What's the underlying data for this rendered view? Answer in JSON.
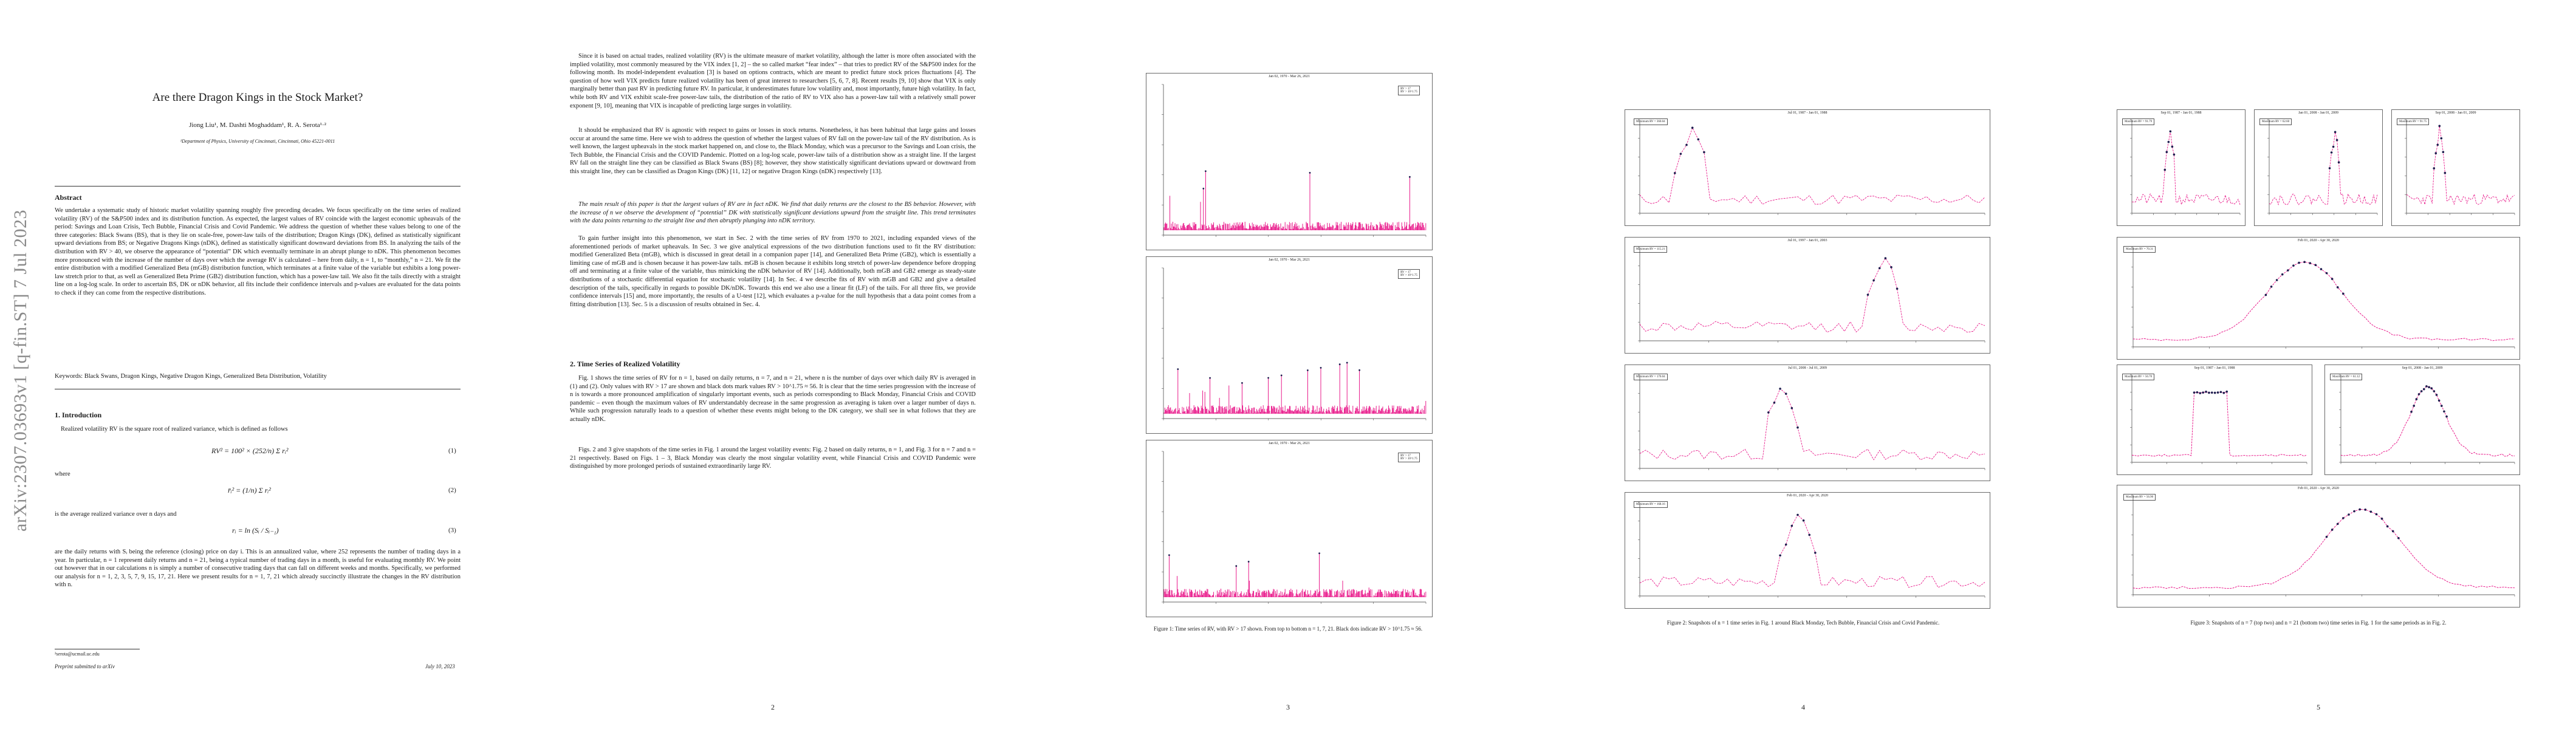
{
  "page1": {
    "arxiv_id": "arXiv:2307.03693v1  [q-fin.ST]  7 Jul 2023",
    "title": "Are there Dragon Kings in the Stock Market?",
    "authors": "Jiong Liu¹, M. Dashti Moghaddam¹, R. A. Serota¹·²",
    "affiliation": "¹Department of Physics, University of Cincinnati, Cincinnati, Ohio 45221-0011",
    "abstract_heading": "Abstract",
    "abstract": "We undertake a systematic study of historic market volatility spanning roughly five preceding decades. We focus specifically on the time series of realized volatility (RV) of the S&P500 index and its distribution function. As expected, the largest values of RV coincide with the largest economic upheavals of the period: Savings and Loan Crisis, Tech Bubble, Financial Crisis and Covid Pandemic. We address the question of whether these values belong to one of the three categories: Black Swans (BS), that is they lie on scale-free, power-law tails of the distribution; Dragon Kings (DK), defined as statistically significant upward deviations from BS; or Negative Dragons Kings (nDK), defined as statistically significant downward deviations from BS. In analyzing the tails of the distribution with RV > 40, we observe the appearance of “potential” DK which eventually terminate in an abrupt plunge to nDK. This phenomenon becomes more pronounced with the increase of the number of days over which the average RV is calculated – here from daily, n = 1, to “monthly,” n = 21. We fit the entire distribution with a modified Generalized Beta (mGB) distribution function, which terminates at a finite value of the variable but exhibits a long power-law stretch prior to that, as well as Generalized Beta Prime (GB2) distribution function, which has a power-law tail. We also fit the tails directly with a straight line on a log-log scale. In order to ascertain BS, DK or nDK behavior, all fits include their confidence intervals and p-values are evaluated for the data points to check if they can come from the respective distributions.",
    "keywords": "Keywords:  Black Swans, Dragon Kings, Negative Dragon Kings, Generalized Beta Distribution, Volatility",
    "intro_heading": "1.  Introduction",
    "intro_p1": "Realized volatility RV is the square root of realized variance, which is defined as follows",
    "eq1": "RV² = 100² × (252/n) Σ rᵢ²",
    "eq1_num": "(1)",
    "where1": "where",
    "eq2": "r̄ᵢ² = (1/n) Σ rᵢ²",
    "eq2_num": "(2)",
    "intro_p2": "is the average realized variance over n days and",
    "eq3": "rᵢ = ln (Sᵢ / Sᵢ₋₁)",
    "eq3_num": "(3)",
    "intro_p3": "are the daily returns with Sᵢ being the reference (closing) price on day i. This is an annualized value, where 252 represents the number of trading days in a year. In particular, n = 1 represent daily returns and n = 21, being a typical number of trading days in a month, is useful for evaluating monthly RV. We point out however that in our calculations n is simply a number of consecutive trading days that can fall on different weeks and months. Specifically, we performed our analysis for n = 1, 2, 3, 5, 7, 9, 15, 17, 21. Here we present results for n = 1, 7, 21 which already succinctly illustrate the changes in the RV distribution with n.",
    "footnote": "²serota@ucmail.uc.edu",
    "preprint": "Preprint submitted to arXiv",
    "date": "July 10, 2023"
  },
  "page2": {
    "p1": "Since it is based on actual trades, realized volatility (RV) is the ultimate measure of market volatility, although the latter is more often associated with the implied volatility, most commonly measured by the VIX index [1, 2] – the so called market “fear index” – that tries to predict RV of the S&P500 index for the following month. Its model-independent evaluation [3] is based on options contracts, which are meant to predict future stock prices fluctuations [4]. The question of how well VIX predicts future realized volatility has been of great interest to researchers [5, 6, 7, 8]. Recent results [9, 10] show that VIX is only marginally better than past RV in predicting future RV. In particular, it underestimates future low volatility and, most importantly, future high volatility. In fact, while both RV and VIX exhibit scale-free power-law tails, the distribution of the ratio of RV to VIX also has a power-law tail with a relatively small power exponent [9, 10], meaning that VIX is incapable of predicting large surges in volatility.",
    "p2": "It should be emphasized that RV is agnostic with respect to gains or losses in stock returns. Nonetheless, it has been habitual that large gains and losses occur at around the same time. Here we wish to address the question of whether the largest values of RV fall on the power-law tail of the RV distribution. As is well known, the largest upheavals in the stock market happened on, and close to, the Black Monday, which was a precursor to the Savings and Loan crisis, the Tech Bubble, the Financial Crisis and the COVID Pandemic. Plotted on a log-log scale, power-law tails of a distribution show as a straight line. If the largest RV fall on the straight line they can be classified as Black Swans (BS) [8]; however, they show statistically significant deviations upward or downward from this straight line, they can be classified as Dragon Kings (DK) [11, 12] or negative Dragon Kings (nDK) respectively [13].",
    "p3": "The main result of this paper is that the largest values of RV are in fact nDK. We find that daily returns are the closest to the BS behavior. However, with the increase of n we observe the development of “potential” DK with statistically significant deviations upward from the straight line. This trend terminates with the data points returning to the straight line and then abruptly plunging into nDK territory.",
    "p4": "To gain further insight into this phenomenon, we start in Sec. 2 with the time series of RV from 1970 to 2021, including expanded views of the aforementioned periods of market upheavals. In Sec. 3 we give analytical expressions of the two distribution functions used to fit the RV distribution: modified Generalized Beta (mGB), which is discussed in great detail in a companion paper [14], and Generalized Beta Prime (GB2), which is essentially a limiting case of mGB and is chosen because it has power-law tails. mGB is chosen because it exhibits long stretch of power-law dependence before dropping off and terminating at a finite value of the variable, thus mimicking the nDK behavior of RV [14]. Additionally, both mGB and GB2 emerge as steady-state distributions of a stochastic differential equation for stochastic volatility [14]. In Sec. 4 we describe fits of RV with mGB and GB2 and give a detailed description of the tails, specifically in regards to possible DK/nDK. Towards this end we also use a linear fit (LF) of the tails. For all three fits, we provide confidence intervals [15] and, more importantly, the results of a U-test [12], which evaluates a p-value for the null hypothesis that a data point comes from a fitting distribution [13]. Sec. 5 is a discussion of results obtained in Sec. 4.",
    "sec2_heading": "2.  Time Series of Realized Volatility",
    "p5": "Fig. 1 shows the time series of RV for n = 1, based on daily returns, n = 7, and n = 21, where n is the number of days over which daily RV is averaged in (1) and (2). Only values with RV > 17 are shown and black dots mark values RV > 10^1.75 ≈ 56. It is clear that the time series progression with the increase of n is towards a more pronounced amplification of singularly important events, such as periods corresponding to Black Monday, Financial Crisis and COVID pandemic – even though the maximum values of RV understandably decrease in the same progression as averaging is taken over a larger number of days n. While such progression naturally leads to a question of whether these events might belong to the DK category, we shall see in what follows that they are actually nDK.",
    "p6": "Figs. 2 and 3 give snapshots of the time series in Fig. 1 around the largest volatility events: Fig. 2 based on daily returns, n = 1, and Fig. 3 for n = 7 and n = 21 respectively. Based on Figs. 1 – 3, Black Monday was clearly the most singular volatility event, while Financial Crisis and COVID Pandemic were distinguished by more prolonged periods of sustained extraordinarily large RV.",
    "page_num": "2"
  },
  "page3": {
    "panels": [
      {
        "title": "Jan 02, 1970 - Mar 26, 2021",
        "legend": [
          "RV > 17",
          "RV > 10^1.75"
        ]
      },
      {
        "title": "Jan 02, 1970 - Mar 26, 2021",
        "legend": [
          "RV > 17",
          "RV > 10^1.75"
        ]
      },
      {
        "title": "Jan 02, 1970 - Mar 26, 2021",
        "legend": [
          "RV > 17",
          "RV > 10^1.75"
        ]
      }
    ],
    "caption": "Figure 1: Time series of RV, with RV > 17 shown. From top to bottom n = 1, 7, 21. Black dots indicate RV > 10^1.75 ≈ 56.",
    "page_num": "3",
    "colors": {
      "series": "#e6007e",
      "highlight": "#1f1f4f"
    }
  },
  "page4": {
    "panels": [
      {
        "title": "Jul 01, 1987 - Jan 01, 1988",
        "legend": "Maximum RV = 360.04"
      },
      {
        "title": "Jul 01, 1997 - Jan 01, 2003",
        "legend": "Maximum RV = 115.21"
      },
      {
        "title": "Jul 01, 2008 - Jul 01, 2009",
        "legend": "Maximum RV = 170.04"
      },
      {
        "title": "Feb 01, 2020 - Apr 30, 2020",
        "legend": "Maximum RV = 168.16"
      }
    ],
    "caption": "Figure 2: Snapshots of n = 1 time series in Fig. 1 around Black Monday, Tech Bubble, Financial Crisis and Covid Pandemic.",
    "page_num": "4"
  },
  "page5": {
    "top_panels": [
      {
        "title": "Sep 01, 1987 - Jan 01, 1988",
        "legend": "Maximum RV = 91.79"
      },
      {
        "title": "Jan 01, 2008 - Jan 01, 2009",
        "legend": "Maximum RV = 62.60"
      },
      {
        "title": "Sep 01, 2008 - Jan 01, 2009",
        "legend": "Maximum RV = 91.75"
      }
    ],
    "mid_panel": {
      "title": "Feb 01, 2020 - Apr 30, 2020",
      "legend": "Maximum RV = 70.31"
    },
    "pair_panels": [
      {
        "title": "Sep 01, 1987 - Jan 01, 1988",
        "legend": "Maximum RV = 56.70"
      },
      {
        "title": "Sep 01, 2008 - Jan 01, 2009",
        "legend": "Maximum RV = 61.12"
      }
    ],
    "bottom_panel": {
      "title": "Feb 01, 2020 - Apr 30, 2020",
      "legend": "Maximum RV = 56.90"
    },
    "caption": "Figure 3: Snapshots of n = 7 (top two) and n = 21 (bottom two) time series in Fig. 1 for the same periods as in Fig. 2.",
    "page_num": "5"
  }
}
